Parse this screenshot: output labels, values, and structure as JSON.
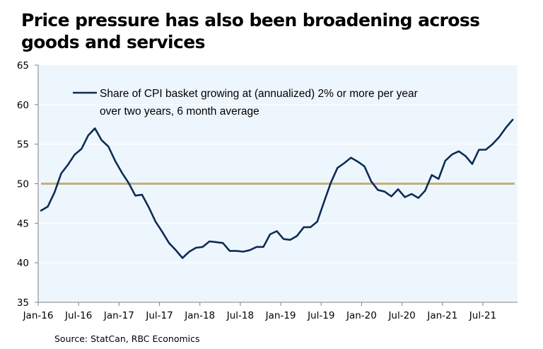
{
  "chart_data": {
    "type": "line",
    "title": "Price pressure has also been broadening across goods and services",
    "xlabel": "",
    "ylabel": "",
    "ylim": [
      35,
      65
    ],
    "yticks": [
      35,
      40,
      45,
      50,
      55,
      60,
      65
    ],
    "xtick_labels": [
      "Jan-16",
      "Jul-16",
      "Jan-17",
      "Jul-17",
      "Jan-18",
      "Jul-18",
      "Jan-19",
      "Jul-19",
      "Jan-20",
      "Jul-20",
      "Jan-21",
      "Jul-21"
    ],
    "x_start": "Jan-16",
    "x_end_months": 71,
    "grid": true,
    "legend_position": "top-left",
    "reference_line": {
      "value": 50,
      "color": "#bfb07c"
    },
    "series": [
      {
        "name": "Share of CPI basket growing at (annualized) 2% or more per year over two years, 6 month average",
        "legend_lines": [
          "Share of CPI basket growing at (annualized) 2% or more per year",
          "over two years, 6 month average"
        ],
        "color": "#0d2c54",
        "x": [
          "Jan-16",
          "Feb-16",
          "Mar-16",
          "Apr-16",
          "May-16",
          "Jun-16",
          "Jul-16",
          "Aug-16",
          "Sep-16",
          "Oct-16",
          "Nov-16",
          "Dec-16",
          "Jan-17",
          "Feb-17",
          "Mar-17",
          "Apr-17",
          "May-17",
          "Jun-17",
          "Jul-17",
          "Aug-17",
          "Sep-17",
          "Oct-17",
          "Nov-17",
          "Dec-17",
          "Jan-18",
          "Feb-18",
          "Mar-18",
          "Apr-18",
          "May-18",
          "Jun-18",
          "Jul-18",
          "Aug-18",
          "Sep-18",
          "Oct-18",
          "Nov-18",
          "Dec-18",
          "Jan-19",
          "Feb-19",
          "Mar-19",
          "Apr-19",
          "May-19",
          "Jun-19",
          "Jul-19",
          "Aug-19",
          "Sep-19",
          "Oct-19",
          "Nov-19",
          "Dec-19",
          "Jan-20",
          "Feb-20",
          "Mar-20",
          "Apr-20",
          "May-20",
          "Jun-20",
          "Jul-20",
          "Aug-20",
          "Sep-20",
          "Oct-20",
          "Nov-20",
          "Dec-20",
          "Jan-21",
          "Feb-21",
          "Mar-21",
          "Apr-21",
          "May-21",
          "Jun-21",
          "Jul-21",
          "Aug-21",
          "Sep-21",
          "Oct-21",
          "Nov-21"
        ],
        "values": [
          46.6,
          47.1,
          48.9,
          51.3,
          52.4,
          53.7,
          54.4,
          56.1,
          57.0,
          55.5,
          54.7,
          52.9,
          51.4,
          50.1,
          48.5,
          48.6,
          47.0,
          45.2,
          43.9,
          42.5,
          41.6,
          40.6,
          41.4,
          41.9,
          42.0,
          42.7,
          42.6,
          42.5,
          41.5,
          41.5,
          41.4,
          41.6,
          42.0,
          42.0,
          43.6,
          44.0,
          43.0,
          42.9,
          43.4,
          44.5,
          44.5,
          45.2,
          47.7,
          50.1,
          52.0,
          52.6,
          53.3,
          52.8,
          52.2,
          50.3,
          49.2,
          49.0,
          48.4,
          49.3,
          48.3,
          48.7,
          48.2,
          49.1,
          51.1,
          50.6,
          52.9,
          53.7,
          54.1,
          53.5,
          52.5,
          54.3,
          54.3,
          55.0,
          55.9,
          57.1,
          58.1
        ]
      }
    ]
  },
  "footer": {
    "source": "Source: StatCan, RBC Economics"
  }
}
